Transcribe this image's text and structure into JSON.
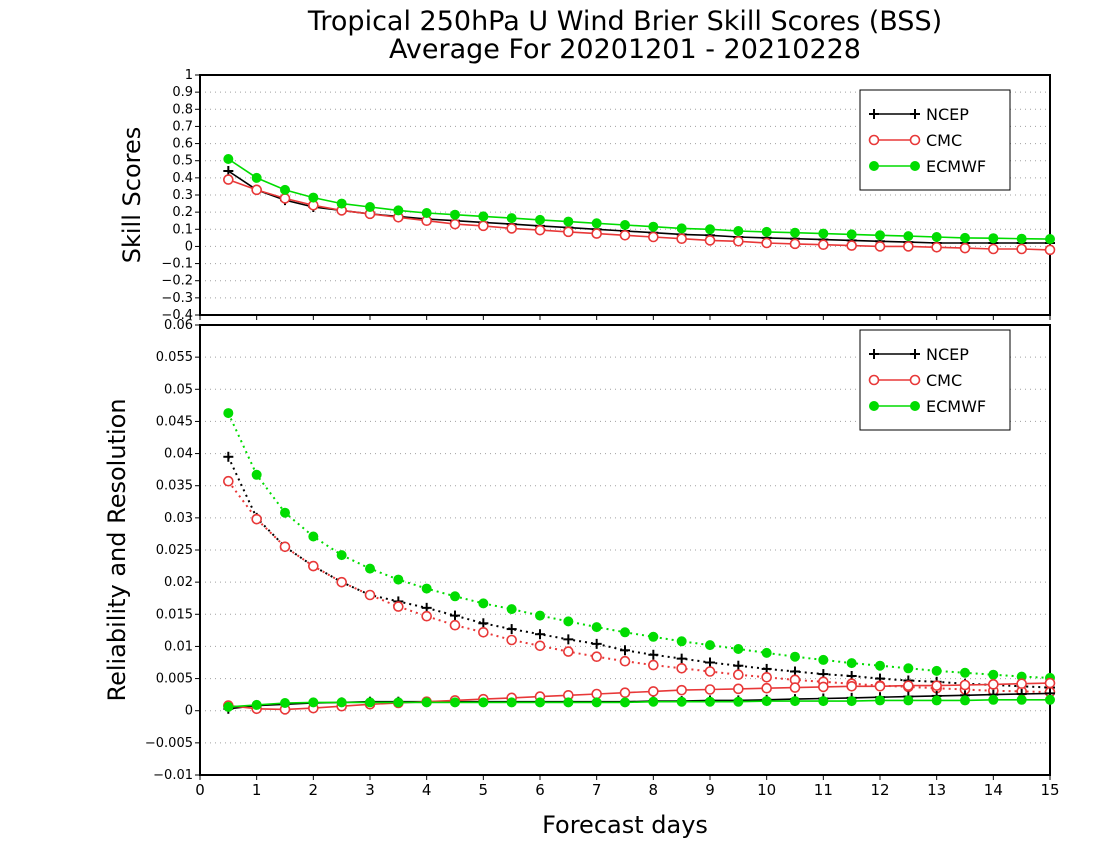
{
  "chart_data": {
    "title_line1": "Tropical 250hPa U Wind Brier Skill Scores (BSS)",
    "title_line2": "Average For 20201201 - 20210228",
    "xlabel": "Forecast days",
    "xlim": [
      0,
      15
    ],
    "xticks": [
      "0",
      "1",
      "2",
      "3",
      "4",
      "5",
      "6",
      "7",
      "8",
      "9",
      "10",
      "11",
      "12",
      "13",
      "14",
      "15"
    ],
    "x": [
      0.5,
      1,
      1.5,
      2,
      2.5,
      3,
      3.5,
      4,
      4.5,
      5,
      5.5,
      6,
      6.5,
      7,
      7.5,
      8,
      8.5,
      9,
      9.5,
      10,
      10.5,
      11,
      11.5,
      12,
      12.5,
      13,
      13.5,
      14,
      14.5,
      15
    ],
    "legend": [
      {
        "name": "NCEP",
        "color": "#000000",
        "marker": "plus"
      },
      {
        "name": "CMC",
        "color": "#e83838",
        "marker": "open-circle"
      },
      {
        "name": "ECMWF",
        "color": "#00dc00",
        "marker": "filled-circle"
      }
    ],
    "panels": [
      {
        "type": "line",
        "ylabel": "Skill Scores",
        "ylim": [
          -0.4,
          1
        ],
        "yticks": [
          "−0.4",
          "−0.3",
          "−0.2",
          "−0.1",
          "0",
          "0.1",
          "0.2",
          "0.3",
          "0.4",
          "0.5",
          "0.6",
          "0.7",
          "0.8",
          "0.9",
          "1"
        ],
        "grid": true,
        "legend_position": "top-right",
        "series": [
          {
            "name": "NCEP",
            "style": "solid",
            "marker": "plus",
            "color": "#000000",
            "values": [
              0.44,
              0.33,
              0.27,
              0.23,
              0.21,
              0.19,
              0.175,
              0.16,
              0.15,
              0.14,
              0.13,
              0.12,
              0.11,
              0.1,
              0.09,
              0.08,
              0.07,
              0.065,
              0.055,
              0.05,
              0.045,
              0.04,
              0.035,
              0.03,
              0.025,
              0.02,
              0.02,
              0.02,
              0.02,
              0.02
            ]
          },
          {
            "name": "CMC",
            "style": "solid",
            "marker": "open-circle",
            "color": "#e83838",
            "values": [
              0.39,
              0.33,
              0.28,
              0.24,
              0.21,
              0.19,
              0.17,
              0.15,
              0.13,
              0.12,
              0.105,
              0.095,
              0.085,
              0.075,
              0.065,
              0.055,
              0.045,
              0.035,
              0.03,
              0.02,
              0.015,
              0.01,
              0.005,
              0.0,
              0.0,
              -0.005,
              -0.01,
              -0.015,
              -0.015,
              -0.02
            ]
          },
          {
            "name": "ECMWF",
            "style": "solid",
            "marker": "filled-circle",
            "color": "#00dc00",
            "values": [
              0.51,
              0.4,
              0.33,
              0.285,
              0.25,
              0.23,
              0.21,
              0.195,
              0.185,
              0.175,
              0.165,
              0.155,
              0.145,
              0.135,
              0.125,
              0.115,
              0.105,
              0.1,
              0.09,
              0.085,
              0.08,
              0.075,
              0.07,
              0.065,
              0.06,
              0.055,
              0.05,
              0.048,
              0.045,
              0.043
            ]
          }
        ]
      },
      {
        "type": "line",
        "ylabel": "Reliability and Resolution",
        "ylim": [
          -0.01,
          0.06
        ],
        "yticks": [
          "−0.01",
          "−0.005",
          "0",
          "0.005",
          "0.01",
          "0.015",
          "0.02",
          "0.025",
          "0.03",
          "0.035",
          "0.04",
          "0.045",
          "0.05",
          "0.055",
          "0.06"
        ],
        "grid": true,
        "legend_position": "top-right",
        "series": [
          {
            "name": "NCEP resolution",
            "style": "dotted",
            "marker": "plus",
            "color": "#000000",
            "values": [
              0.0395,
              0.03,
              0.0255,
              0.0225,
              0.02,
              0.018,
              0.017,
              0.016,
              0.0148,
              0.0136,
              0.0127,
              0.0119,
              0.0111,
              0.0104,
              0.0094,
              0.0087,
              0.0081,
              0.0075,
              0.007,
              0.0065,
              0.0061,
              0.0057,
              0.0054,
              0.005,
              0.0047,
              0.0045,
              0.0042,
              0.004,
              0.0038,
              0.0036
            ]
          },
          {
            "name": "CMC resolution",
            "style": "dotted",
            "marker": "open-circle",
            "color": "#e83838",
            "values": [
              0.0357,
              0.0298,
              0.0255,
              0.0225,
              0.02,
              0.018,
              0.0162,
              0.0147,
              0.0133,
              0.0122,
              0.011,
              0.0101,
              0.0092,
              0.0084,
              0.0077,
              0.0071,
              0.0066,
              0.0061,
              0.0056,
              0.0052,
              0.0048,
              0.0045,
              0.0042,
              0.0039,
              0.0037,
              0.0035,
              0.0033,
              0.0031,
              0.003,
              0.0029
            ]
          },
          {
            "name": "ECMWF resolution",
            "style": "dotted",
            "marker": "filled-circle",
            "color": "#00dc00",
            "values": [
              0.0463,
              0.0367,
              0.0308,
              0.0271,
              0.0242,
              0.0221,
              0.0204,
              0.019,
              0.0178,
              0.0167,
              0.0158,
              0.0148,
              0.0139,
              0.013,
              0.0122,
              0.0115,
              0.0108,
              0.0102,
              0.0096,
              0.009,
              0.0084,
              0.0079,
              0.0074,
              0.007,
              0.0066,
              0.0062,
              0.0059,
              0.0056,
              0.0053,
              0.0051
            ]
          },
          {
            "name": "NCEP reliability",
            "style": "solid",
            "marker": "plus",
            "color": "#000000",
            "values": [
              0.0003,
              0.0008,
              0.001,
              0.0012,
              0.0013,
              0.0014,
              0.0014,
              0.0014,
              0.0014,
              0.0014,
              0.0014,
              0.0014,
              0.0014,
              0.0014,
              0.0014,
              0.0015,
              0.0015,
              0.0016,
              0.0016,
              0.0017,
              0.0018,
              0.0019,
              0.002,
              0.0021,
              0.0022,
              0.0023,
              0.0024,
              0.0025,
              0.0026,
              0.0027
            ]
          },
          {
            "name": "CMC reliability",
            "style": "solid",
            "marker": "open-circle",
            "color": "#e83838",
            "values": [
              0.0008,
              0.0003,
              0.0002,
              0.0004,
              0.0007,
              0.001,
              0.0012,
              0.0014,
              0.0016,
              0.0018,
              0.002,
              0.0022,
              0.0024,
              0.0026,
              0.0028,
              0.003,
              0.0032,
              0.0033,
              0.0034,
              0.0035,
              0.0036,
              0.0037,
              0.0038,
              0.0038,
              0.0039,
              0.0039,
              0.004,
              0.0041,
              0.0042,
              0.0043
            ]
          },
          {
            "name": "ECMWF reliability",
            "style": "solid",
            "marker": "filled-circle",
            "color": "#00dc00",
            "values": [
              0.0006,
              0.0009,
              0.0012,
              0.0013,
              0.0013,
              0.0013,
              0.0013,
              0.0013,
              0.0013,
              0.0013,
              0.0013,
              0.0013,
              0.0013,
              0.0013,
              0.0013,
              0.0014,
              0.0014,
              0.0014,
              0.0014,
              0.0015,
              0.0015,
              0.0015,
              0.0015,
              0.0016,
              0.0016,
              0.0016,
              0.0016,
              0.0017,
              0.0017,
              0.0017
            ]
          }
        ]
      }
    ]
  }
}
